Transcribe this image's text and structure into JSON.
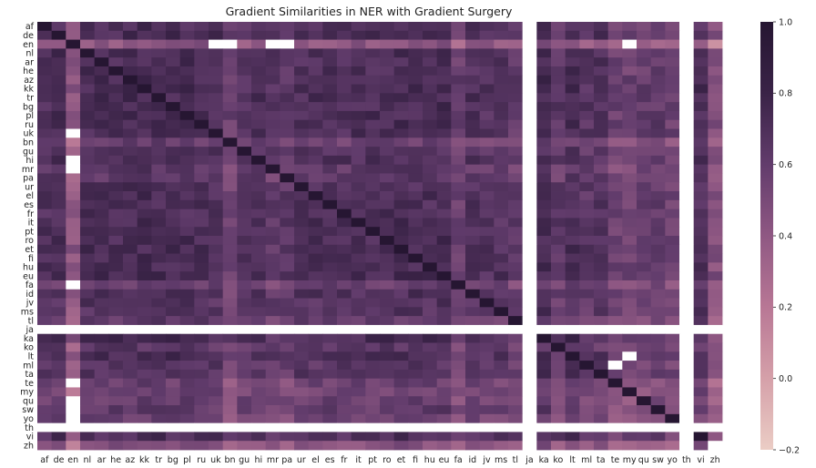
{
  "chart_data": {
    "type": "heatmap",
    "title": "Gradient Similarities in NER with Gradient Surgery",
    "xlabel": "",
    "ylabel": "",
    "labels": [
      "af",
      "de",
      "en",
      "nl",
      "ar",
      "he",
      "az",
      "kk",
      "tr",
      "bg",
      "pl",
      "ru",
      "uk",
      "bn",
      "gu",
      "hi",
      "mr",
      "pa",
      "ur",
      "el",
      "es",
      "fr",
      "it",
      "pt",
      "ro",
      "et",
      "fi",
      "hu",
      "eu",
      "fa",
      "id",
      "jv",
      "ms",
      "tl",
      "ja",
      "ka",
      "ko",
      "lt",
      "ml",
      "ta",
      "te",
      "my",
      "qu",
      "sw",
      "yo",
      "th",
      "vi",
      "zh"
    ],
    "value_range": [
      -0.2,
      1.0
    ],
    "colorbar_ticks": [
      "−0.2",
      "0.0",
      "0.2",
      "0.4",
      "0.6",
      "0.8",
      "1.0"
    ],
    "colormap": [
      "#ebcdc5",
      "#d5a0a9",
      "#b87795",
      "#8f5883",
      "#623c6c",
      "#3a2347",
      "#261632"
    ],
    "missing_color": "#ffffff",
    "diagonal_value": 1.0,
    "row_base": {
      "af": 0.68,
      "de": 0.72,
      "en": 0.12,
      "nl": 0.72,
      "ar": 0.7,
      "he": 0.7,
      "az": 0.74,
      "kk": 0.75,
      "tr": 0.74,
      "bg": 0.72,
      "pl": 0.72,
      "ru": 0.72,
      "uk": 0.7,
      "bn": 0.42,
      "gu": 0.62,
      "hi": 0.68,
      "mr": 0.55,
      "pa": 0.55,
      "ur": 0.66,
      "el": 0.7,
      "es": 0.7,
      "fr": 0.68,
      "it": 0.7,
      "pt": 0.7,
      "ro": 0.71,
      "et": 0.72,
      "fi": 0.72,
      "hu": 0.7,
      "eu": 0.74,
      "fa": 0.45,
      "id": 0.66,
      "jv": 0.62,
      "ms": 0.63,
      "tl": 0.5,
      "ja": 0.05,
      "ka": 0.76,
      "ko": 0.55,
      "lt": 0.72,
      "ml": 0.58,
      "ta": 0.64,
      "te": 0.4,
      "my": 0.38,
      "qu": 0.45,
      "sw": 0.5,
      "yo": 0.4,
      "th": 0.1,
      "vi": 0.68,
      "zh": 0.2
    },
    "missing_cells": [
      [
        "en",
        "uk"
      ],
      [
        "en",
        "bn"
      ],
      [
        "en",
        "mr"
      ],
      [
        "en",
        "pa"
      ],
      [
        "en",
        "ja"
      ],
      [
        "en",
        "my"
      ],
      [
        "en",
        "th"
      ],
      [
        "uk",
        "en"
      ],
      [
        "hi",
        "en"
      ],
      [
        "mr",
        "en"
      ],
      [
        "fa",
        "en"
      ],
      [
        "te",
        "en"
      ],
      [
        "sw",
        "en"
      ],
      [
        "ja",
        "ja"
      ],
      [
        "th",
        "th"
      ],
      [
        "zh",
        "zh"
      ],
      [
        "lt",
        "my"
      ],
      [
        "ml",
        "te"
      ],
      [
        "qu",
        "en"
      ],
      [
        "yo",
        "en"
      ]
    ],
    "missing_rows": [
      "ja",
      "th"
    ],
    "missing_cols": [
      "ja",
      "th"
    ],
    "grid": false,
    "colorbar": "right"
  }
}
